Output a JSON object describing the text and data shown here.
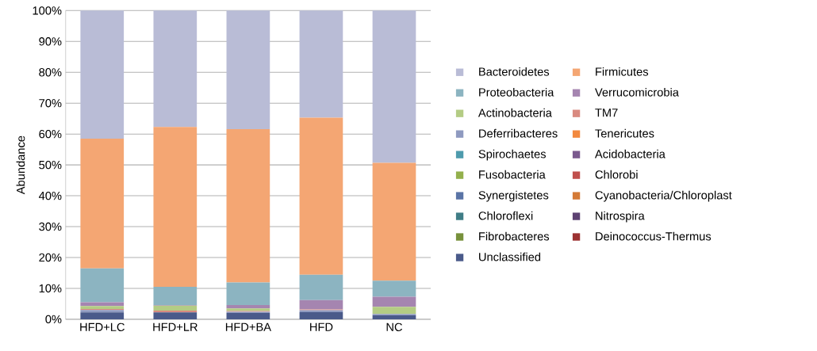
{
  "chart_data": {
    "type": "bar",
    "stacked": true,
    "ylabel": "Abundance",
    "categories": [
      "HFD+LC",
      "HFD+LR",
      "HFD+BA",
      "HFD",
      "NC"
    ],
    "ylim": [
      0,
      100
    ],
    "yticks": [
      {
        "value": 0,
        "label": "0%"
      },
      {
        "value": 10,
        "label": "10%"
      },
      {
        "value": 20,
        "label": "20%"
      },
      {
        "value": 30,
        "label": "30%"
      },
      {
        "value": 40,
        "label": "40%"
      },
      {
        "value": 50,
        "label": "50%"
      },
      {
        "value": 60,
        "label": "60%"
      },
      {
        "value": 70,
        "label": "70%"
      },
      {
        "value": 80,
        "label": "80%"
      },
      {
        "value": 90,
        "label": "90%"
      },
      {
        "value": 100,
        "label": "100%"
      }
    ],
    "grid": "y",
    "legend": "right",
    "series": [
      {
        "name": "Unclassified",
        "color": "#4a5a8a",
        "values": [
          2.2,
          2.2,
          2.0,
          2.3,
          1.3
        ]
      },
      {
        "name": "Deinococcus-Thermus",
        "color": "#9c3232",
        "values": [
          0,
          0,
          0,
          0,
          0
        ]
      },
      {
        "name": "Fibrobacteres",
        "color": "#77913b",
        "values": [
          0,
          0,
          0,
          0,
          0
        ]
      },
      {
        "name": "Nitrospira",
        "color": "#5d4272",
        "values": [
          0,
          0,
          0,
          0,
          0
        ]
      },
      {
        "name": "Chloroflexi",
        "color": "#3f7d86",
        "values": [
          0,
          0,
          0,
          0,
          0
        ]
      },
      {
        "name": "Cyanobacteria/Chloroplast",
        "color": "#d47a37",
        "values": [
          0,
          0,
          0,
          0,
          0
        ]
      },
      {
        "name": "Synergistetes",
        "color": "#5a74a6",
        "values": [
          0,
          0,
          0,
          0,
          0
        ]
      },
      {
        "name": "Chlorobi",
        "color": "#c0504d",
        "values": [
          0,
          0,
          0,
          0,
          0
        ]
      },
      {
        "name": "Fusobacteria",
        "color": "#93b04c",
        "values": [
          0,
          0,
          0,
          0,
          0
        ]
      },
      {
        "name": "Acidobacteria",
        "color": "#7b5a8e",
        "values": [
          0,
          0,
          0,
          0,
          0
        ]
      },
      {
        "name": "Spirochaetes",
        "color": "#4e9bad",
        "values": [
          0,
          0,
          0,
          0,
          0
        ]
      },
      {
        "name": "Tenericutes",
        "color": "#f2893f",
        "values": [
          0,
          0,
          0,
          0,
          0
        ]
      },
      {
        "name": "Deferribacteres",
        "color": "#8f9ac0",
        "values": [
          0.8,
          0,
          0.4,
          0.6,
          0.4
        ]
      },
      {
        "name": "TM7",
        "color": "#d98a80",
        "values": [
          0.3,
          0.6,
          0.3,
          0.3,
          0
        ]
      },
      {
        "name": "Actinobacteria",
        "color": "#b4cc84",
        "values": [
          1.0,
          1.6,
          0.8,
          0,
          2.3
        ]
      },
      {
        "name": "Verrucomicrobia",
        "color": "#a585b0",
        "values": [
          1.2,
          0.2,
          1.1,
          3.0,
          3.3
        ]
      },
      {
        "name": "Proteobacteria",
        "color": "#8cb4c1",
        "values": [
          11.0,
          5.9,
          7.3,
          8.2,
          5.2
        ]
      },
      {
        "name": "Firmicutes",
        "color": "#f4a673",
        "values": [
          42.0,
          51.8,
          49.7,
          50.9,
          38.2
        ]
      },
      {
        "name": "Bacteroidetes",
        "color": "#b9bcd6",
        "values": [
          41.5,
          37.7,
          38.4,
          34.7,
          49.3
        ]
      }
    ]
  }
}
